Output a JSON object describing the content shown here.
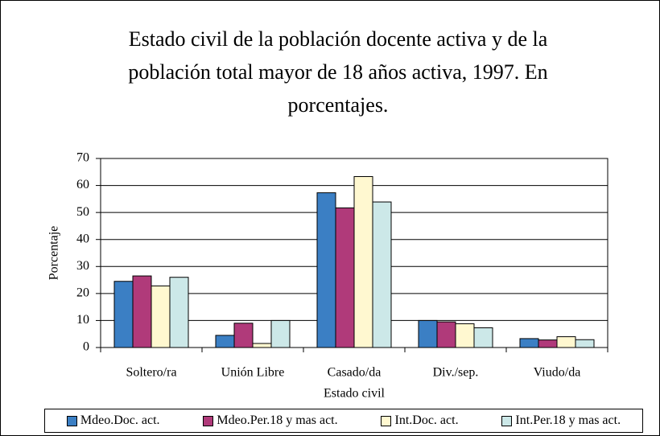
{
  "chart_data": {
    "type": "bar",
    "title": "Estado civil de la población docente activa y de la población total mayor de 18 años activa, 1997. En porcentajes.",
    "x_label": "Estado civil",
    "y_label": "Porcentaje",
    "categories": [
      "Soltero/ra",
      "Unión Libre",
      "Casado/da",
      "Div./sep.",
      "Viudo/da"
    ],
    "series": [
      {
        "name": "Mdeo.Doc. act.",
        "color": "#3b7fc4",
        "values": [
          24.5,
          4.5,
          57.3,
          10.0,
          3.3
        ]
      },
      {
        "name": "Mdeo.Per.18 y mas act.",
        "color": "#b03a7a",
        "values": [
          26.5,
          9.0,
          51.7,
          9.5,
          2.8
        ]
      },
      {
        "name": "Int.Doc. act.",
        "color": "#fff8d0",
        "values": [
          22.8,
          1.5,
          63.3,
          8.8,
          4.0
        ]
      },
      {
        "name": "Int.Per.18 y mas act.",
        "color": "#cce8e8",
        "values": [
          26.0,
          10.0,
          53.9,
          7.3,
          2.9
        ]
      }
    ],
    "ylim": [
      0,
      70
    ],
    "yticks": [
      0,
      10,
      20,
      30,
      40,
      50,
      60,
      70
    ],
    "grid": true
  }
}
